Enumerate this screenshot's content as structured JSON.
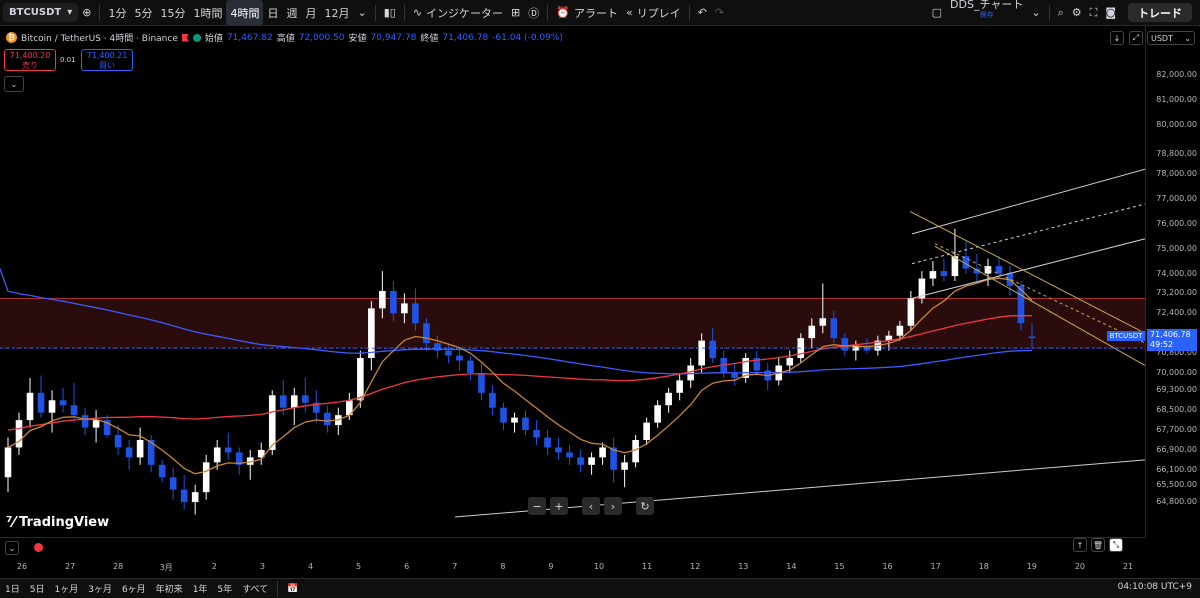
{
  "toolbar": {
    "symbol": "BTCUSDT",
    "timeframes": [
      "1分",
      "5分",
      "15分",
      "1時間",
      "4時間",
      "日",
      "週",
      "月",
      "12月"
    ],
    "active_timeframe": "4時間",
    "indicators_label": "インジケーター",
    "alert_label": "アラート",
    "replay_label": "リプレイ",
    "layout_name": "DDS_チャート",
    "layout_status": "保存",
    "trade_label": "トレード"
  },
  "legend": {
    "pair": "Bitcoin / TetherUS · 4時間 · Binance",
    "open_label": "始値",
    "open": "71,467.82",
    "high_label": "高値",
    "high": "72,000.50",
    "low_label": "安値",
    "low": "70,947.78",
    "close_label": "終値",
    "close": "71,406.78",
    "change": "-61.04 (-0.09%)"
  },
  "quote": {
    "bid": "71,400.20",
    "bid_label": "売り",
    "spread": "0.01",
    "ask": "71,400.21",
    "ask_label": "買い"
  },
  "price_axis": {
    "currency": "USDT",
    "labels": [
      "82,000.00",
      "81,000.00",
      "80,000.00",
      "78,800.00",
      "78,000.00",
      "77,000.00",
      "76,000.00",
      "75,000.00",
      "74,000.00",
      "73,200.00",
      "72,400.00",
      "71,600.00",
      "70,800.00",
      "70,000.00",
      "69,300.00",
      "68,500.00",
      "67,700.00",
      "66,900.00",
      "66,100.00",
      "65,500.00",
      "64,800.00"
    ],
    "current_price": "71,406.78",
    "countdown": "49:52",
    "symbol_tag": "BTCUSDT"
  },
  "time_axis": {
    "labels": [
      "26",
      "27",
      "28",
      "3月",
      "2",
      "3",
      "4",
      "5",
      "6",
      "7",
      "8",
      "9",
      "10",
      "11",
      "12",
      "13",
      "14",
      "15",
      "16",
      "17",
      "18",
      "19",
      "20",
      "21"
    ]
  },
  "bottom_bar": {
    "ranges": [
      "1日",
      "5日",
      "1ヶ月",
      "3ヶ月",
      "6ヶ月",
      "年初来",
      "1年",
      "5年",
      "すべて"
    ],
    "clock": "04:10:08 UTC+9"
  },
  "branding": {
    "logo_text": "TradingView"
  },
  "colors": {
    "up": "#ffffff",
    "down": "#1e53e5",
    "ema_blue": "#3d5afe",
    "ema_red": "#f23645",
    "ema_orange": "#c8872e",
    "zone": "#2b0c0c"
  },
  "chart_data": {
    "type": "candlestick",
    "symbol": "BTCUSDT",
    "timeframe": "4時間",
    "ylim": [
      64200,
      82800
    ],
    "x_categories": [
      "26",
      "27",
      "28",
      "3月",
      "2",
      "3",
      "4",
      "5",
      "6",
      "7",
      "8",
      "9",
      "10",
      "11",
      "12",
      "13",
      "14",
      "15",
      "16",
      "17",
      "18",
      "19",
      "20",
      "21"
    ],
    "candles_ohlc": [
      [
        65800,
        67400,
        65200,
        67000
      ],
      [
        67000,
        68400,
        66700,
        68100
      ],
      [
        68100,
        69800,
        67800,
        69200
      ],
      [
        69200,
        69900,
        68200,
        68400
      ],
      [
        68400,
        69300,
        67600,
        68900
      ],
      [
        68900,
        69400,
        68400,
        68700
      ],
      [
        68700,
        69600,
        68000,
        68300
      ],
      [
        68300,
        68600,
        67500,
        67800
      ],
      [
        67800,
        68500,
        67200,
        68100
      ],
      [
        68100,
        68300,
        67400,
        67500
      ],
      [
        67500,
        67900,
        66700,
        67000
      ],
      [
        67000,
        67300,
        66100,
        66600
      ],
      [
        66600,
        67800,
        66300,
        67300
      ],
      [
        67300,
        67500,
        66000,
        66300
      ],
      [
        66300,
        66500,
        65600,
        65800
      ],
      [
        65800,
        66200,
        64900,
        65300
      ],
      [
        65300,
        65900,
        64500,
        64800
      ],
      [
        64800,
        65500,
        64300,
        65200
      ],
      [
        65200,
        66700,
        64900,
        66400
      ],
      [
        66400,
        67300,
        66100,
        67000
      ],
      [
        67000,
        67600,
        66500,
        66800
      ],
      [
        66800,
        67000,
        65900,
        66300
      ],
      [
        66300,
        66900,
        65700,
        66600
      ],
      [
        66600,
        67200,
        66300,
        66900
      ],
      [
        66900,
        69300,
        66700,
        69100
      ],
      [
        69100,
        69700,
        68300,
        68600
      ],
      [
        68600,
        69400,
        67900,
        69100
      ],
      [
        69100,
        69800,
        68400,
        68800
      ],
      [
        68800,
        69300,
        68000,
        68400
      ],
      [
        68400,
        68700,
        67600,
        67900
      ],
      [
        67900,
        68600,
        67500,
        68300
      ],
      [
        68300,
        69200,
        68100,
        68900
      ],
      [
        68900,
        70900,
        68600,
        70600
      ],
      [
        70600,
        72900,
        70100,
        72600
      ],
      [
        72600,
        74100,
        72200,
        73300
      ],
      [
        73300,
        73700,
        72100,
        72400
      ],
      [
        72400,
        73200,
        72000,
        72800
      ],
      [
        72800,
        73400,
        71700,
        72000
      ],
      [
        72000,
        72200,
        70900,
        71200
      ],
      [
        71200,
        71500,
        70600,
        70900
      ],
      [
        70900,
        71200,
        70400,
        70700
      ],
      [
        70700,
        71000,
        70100,
        70500
      ],
      [
        70500,
        70700,
        69700,
        70000
      ],
      [
        70000,
        70400,
        68900,
        69200
      ],
      [
        69200,
        69500,
        68300,
        68600
      ],
      [
        68600,
        68800,
        67700,
        68000
      ],
      [
        68000,
        68400,
        67600,
        68200
      ],
      [
        68200,
        68500,
        67500,
        67700
      ],
      [
        67700,
        68100,
        67100,
        67400
      ],
      [
        67400,
        67700,
        66700,
        67000
      ],
      [
        67000,
        67400,
        66500,
        66800
      ],
      [
        66800,
        67100,
        66300,
        66600
      ],
      [
        66600,
        66900,
        66000,
        66300
      ],
      [
        66300,
        66800,
        65900,
        66600
      ],
      [
        66600,
        67200,
        66300,
        67000
      ],
      [
        67000,
        67400,
        65600,
        66100
      ],
      [
        66100,
        66700,
        65400,
        66400
      ],
      [
        66400,
        67500,
        66200,
        67300
      ],
      [
        67300,
        68200,
        67100,
        68000
      ],
      [
        68000,
        68900,
        67800,
        68700
      ],
      [
        68700,
        69400,
        68400,
        69200
      ],
      [
        69200,
        70000,
        68900,
        69700
      ],
      [
        69700,
        70600,
        69400,
        70300
      ],
      [
        70300,
        71600,
        70000,
        71300
      ],
      [
        71300,
        71800,
        70400,
        70600
      ],
      [
        70600,
        70900,
        69800,
        70000
      ],
      [
        70000,
        70400,
        69500,
        69800
      ],
      [
        69800,
        70800,
        69600,
        70600
      ],
      [
        70600,
        70900,
        69900,
        70100
      ],
      [
        70100,
        70400,
        69300,
        69700
      ],
      [
        69700,
        70600,
        69500,
        70300
      ],
      [
        70300,
        70900,
        70000,
        70600
      ],
      [
        70600,
        71600,
        70400,
        71400
      ],
      [
        71400,
        72200,
        71000,
        71900
      ],
      [
        71900,
        73600,
        71600,
        72200
      ],
      [
        72200,
        72500,
        71200,
        71400
      ],
      [
        71400,
        71600,
        70700,
        70900
      ],
      [
        70900,
        71300,
        70500,
        71100
      ],
      [
        71100,
        71400,
        70800,
        70900
      ],
      [
        70900,
        71500,
        70700,
        71300
      ],
      [
        71300,
        71700,
        70900,
        71500
      ],
      [
        71500,
        72100,
        71300,
        71900
      ],
      [
        71900,
        73300,
        71700,
        73000
      ],
      [
        73000,
        74100,
        72800,
        73800
      ],
      [
        73800,
        74500,
        73500,
        74100
      ],
      [
        74100,
        74600,
        73700,
        73900
      ],
      [
        73900,
        75800,
        73700,
        74700
      ],
      [
        74700,
        75300,
        74000,
        74200
      ],
      [
        74200,
        74800,
        73600,
        74000
      ],
      [
        74000,
        74600,
        73500,
        74300
      ],
      [
        74300,
        74700,
        73800,
        74000
      ],
      [
        74000,
        74300,
        73100,
        73500
      ],
      [
        73500,
        73700,
        71700,
        72000
      ],
      [
        71467.82,
        72000.5,
        70947.78,
        71406.78
      ]
    ],
    "moving_averages": [
      {
        "color": "#3d5afe"
      },
      {
        "color": "#f23645"
      },
      {
        "color": "#c8872e"
      }
    ]
  }
}
